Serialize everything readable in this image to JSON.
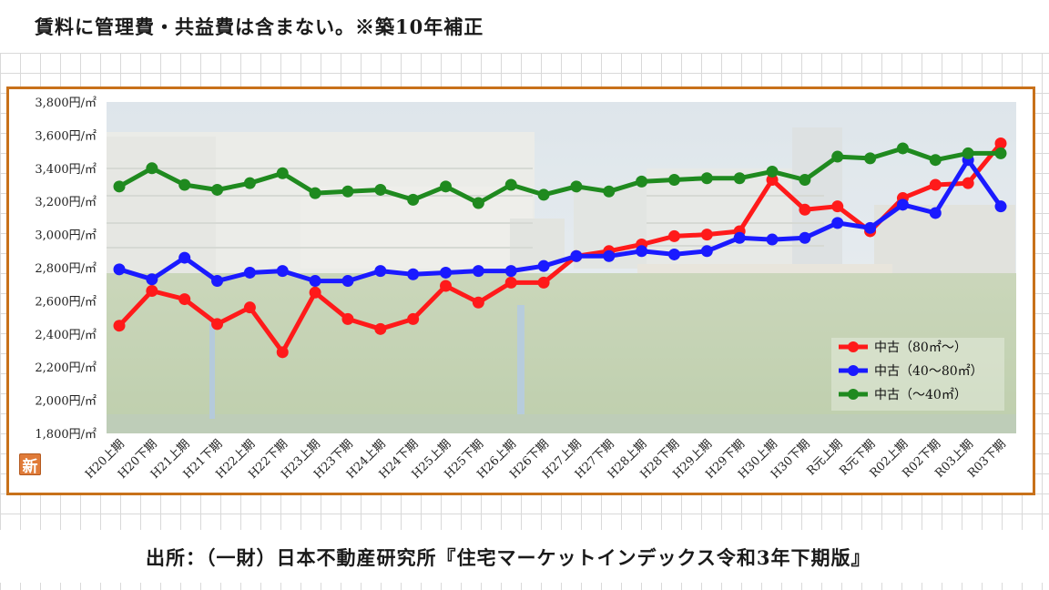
{
  "header": {
    "note": "賃料に管理費・共益費は含まない。※築10年補正"
  },
  "footer": {
    "source": "出所：（一財）日本不動産研究所『住宅マーケットインデックス令和3年下期版』"
  },
  "badge": {
    "label": "新"
  },
  "colors": {
    "frame": "#c8711a",
    "badge": "#e07b39",
    "series": [
      "#ff1a1a",
      "#1a1aff",
      "#1f8a1f"
    ]
  },
  "chart_data": {
    "type": "line",
    "y_unit": "円/㎡",
    "ylim": [
      1800,
      3800
    ],
    "ytick_step": 200,
    "ytick_labels": [
      "1,800円/㎡",
      "2,000円/㎡",
      "2,200円/㎡",
      "2,400円/㎡",
      "2,600円/㎡",
      "2,800円/㎡",
      "3,000円/㎡",
      "3,200円/㎡",
      "3,400円/㎡",
      "3,600円/㎡",
      "3,800円/㎡"
    ],
    "legend_position": "bottom-right",
    "categories": [
      "H20上期",
      "H20下期",
      "H21上期",
      "H21下期",
      "H22上期",
      "H22下期",
      "H23上期",
      "H23下期",
      "H24上期",
      "H24下期",
      "H25上期",
      "H25下期",
      "H26上期",
      "H26下期",
      "H27上期",
      "H27下期",
      "H28上期",
      "H28下期",
      "H29上期",
      "H29下期",
      "H30上期",
      "H30下期",
      "R元上期",
      "R元下期",
      "R02上期",
      "R02下期",
      "R03上期",
      "R03下期"
    ],
    "series": [
      {
        "name": "中古（80㎡～）",
        "values": [
          2450,
          2660,
          2610,
          2460,
          2560,
          2290,
          2650,
          2490,
          2430,
          2490,
          2690,
          2590,
          2710,
          2710,
          2870,
          2900,
          2940,
          2990,
          3000,
          3020,
          3330,
          3150,
          3170,
          3020,
          3220,
          3300,
          3310,
          3550
        ]
      },
      {
        "name": "中古（40～80㎡）",
        "values": [
          2790,
          2730,
          2860,
          2720,
          2770,
          2780,
          2720,
          2720,
          2780,
          2760,
          2770,
          2780,
          2780,
          2810,
          2870,
          2870,
          2900,
          2880,
          2900,
          2980,
          2970,
          2980,
          3070,
          3040,
          3180,
          3130,
          3450,
          3170
        ]
      },
      {
        "name": "中古（～40㎡）",
        "values": [
          3290,
          3400,
          3300,
          3270,
          3310,
          3370,
          3250,
          3260,
          3270,
          3210,
          3290,
          3190,
          3300,
          3240,
          3290,
          3260,
          3320,
          3330,
          3340,
          3340,
          3380,
          3330,
          3470,
          3460,
          3520,
          3450,
          3490,
          3490
        ]
      }
    ]
  }
}
